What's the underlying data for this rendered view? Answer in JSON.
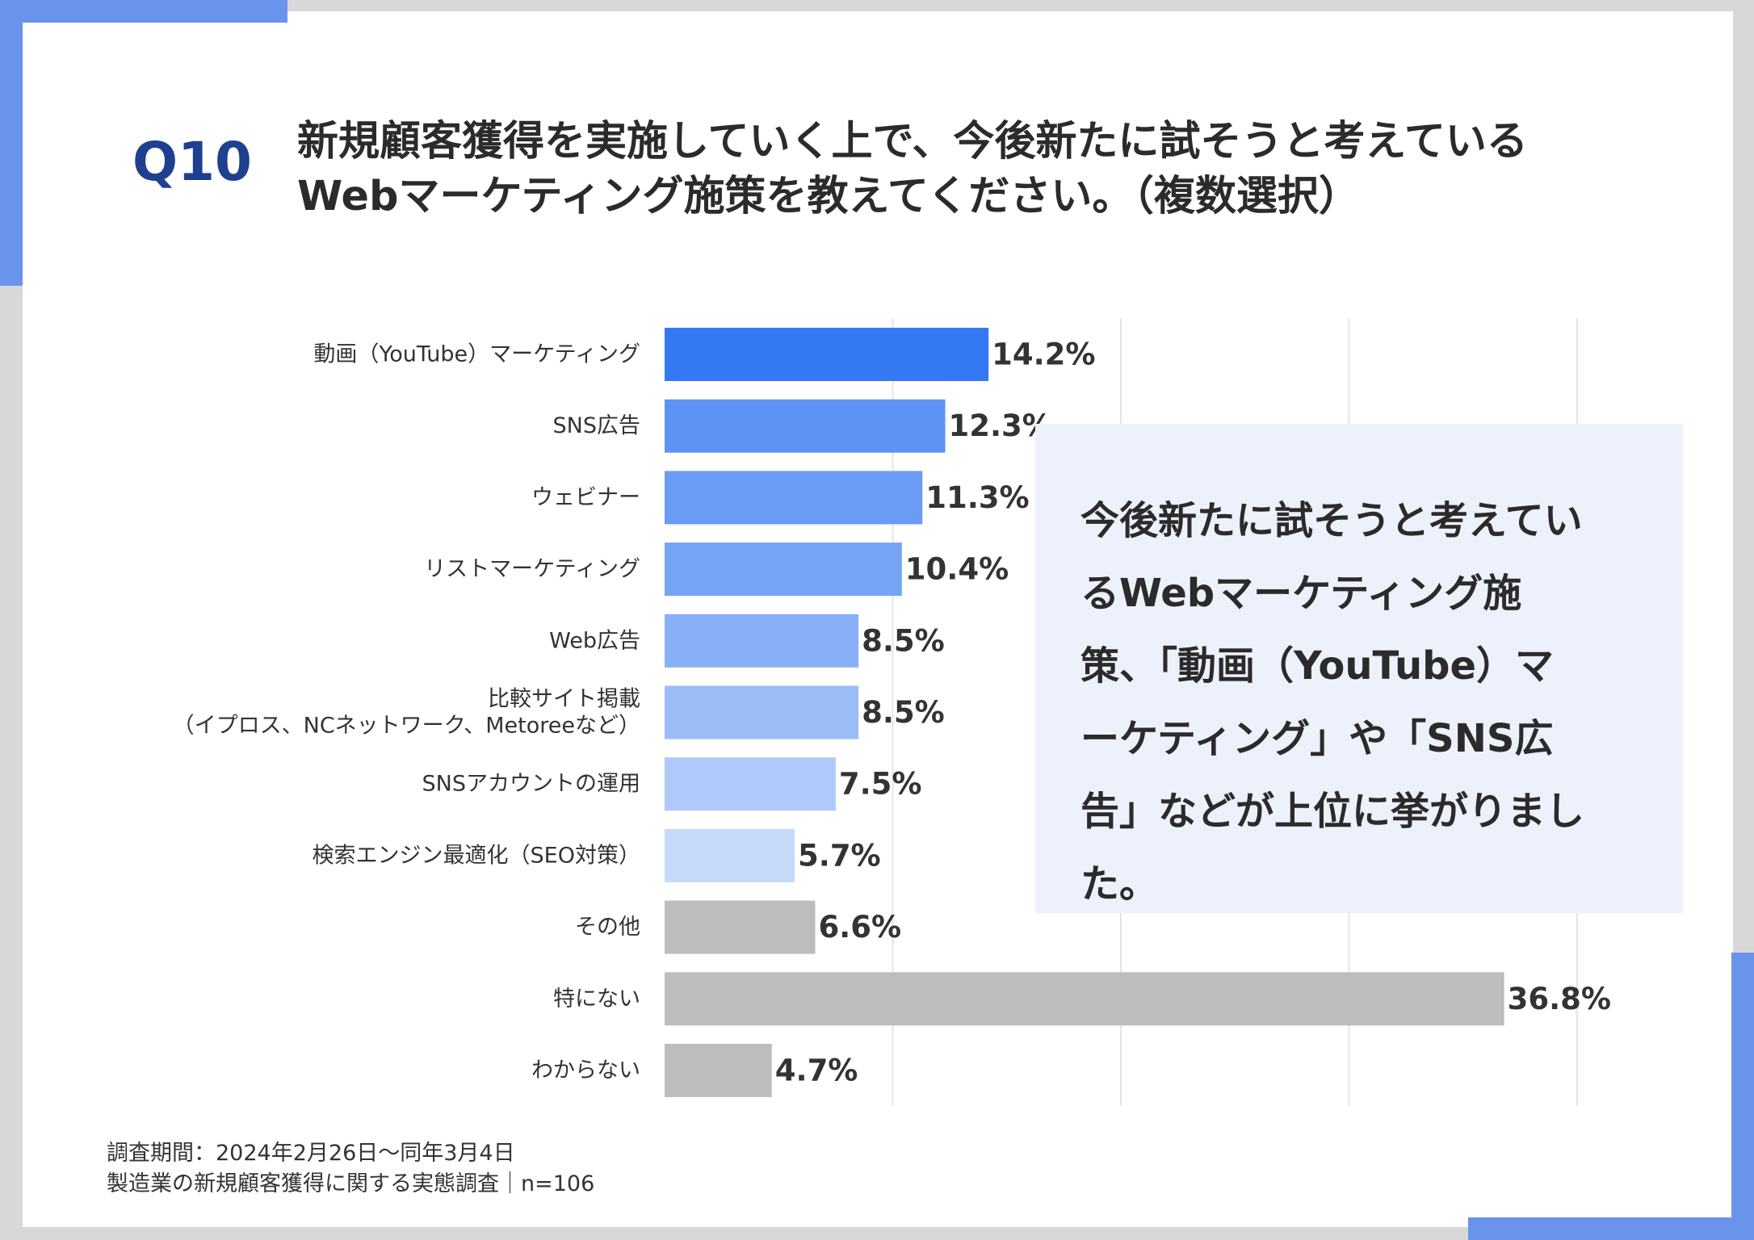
{
  "question": {
    "number": "Q10",
    "title_lines": [
      "新規顧客獲得を実施していく上で、今後新たに試そうと考えている",
      "Webマーケティング施策を教えてください。（複数選択）"
    ]
  },
  "colors": {
    "accent": "#1f3f8f",
    "deco": "#6a94ec",
    "gray_bar": "#bdbdbd",
    "callout_bg": "#ecf1fc"
  },
  "chart_data": {
    "type": "bar",
    "orientation": "horizontal",
    "categories": [
      "動画（YouTube）マーケティング",
      "SNS広告",
      "ウェビナー",
      "リストマーケティング",
      "Web広告",
      "比較サイト掲載\n（イプロス、NCネットワーク、Metoreeなど）",
      "SNSアカウントの運用",
      "検索エンジン最適化（SEO対策）",
      "その他",
      "特にない",
      "わからない"
    ],
    "values": [
      14.2,
      12.3,
      11.3,
      10.4,
      8.5,
      8.5,
      7.5,
      5.7,
      6.6,
      36.8,
      4.7
    ],
    "value_labels": [
      "14.2%",
      "12.3%",
      "11.3%",
      "10.4%",
      "8.5%",
      "8.5%",
      "7.5%",
      "5.7%",
      "6.6%",
      "36.8%",
      "4.7%"
    ],
    "bar_colors": [
      "#3479f3",
      "#5c93f5",
      "#6a9bf5",
      "#75a3f6",
      "#88b0f7",
      "#9bbdf8",
      "#afcafa",
      "#c6d9fb",
      "#bdbdbd",
      "#bdbdbd",
      "#bdbdbd"
    ],
    "xlim": [
      0,
      40
    ],
    "grid": true,
    "gridlines_at": [
      10,
      20,
      30,
      40
    ]
  },
  "callout": {
    "lines": [
      "今後新たに試そうと考えてい",
      "るWebマーケティング施",
      "策、「動画（YouTube）マ",
      "ーケティング」や「SNS広",
      "告」などが上位に挙がりまし",
      "た。"
    ]
  },
  "footnote": {
    "lines": [
      "調査期間：2024年2月26日～同年3月4日",
      "製造業の新規顧客獲得に関する実態調査｜n=106"
    ]
  }
}
